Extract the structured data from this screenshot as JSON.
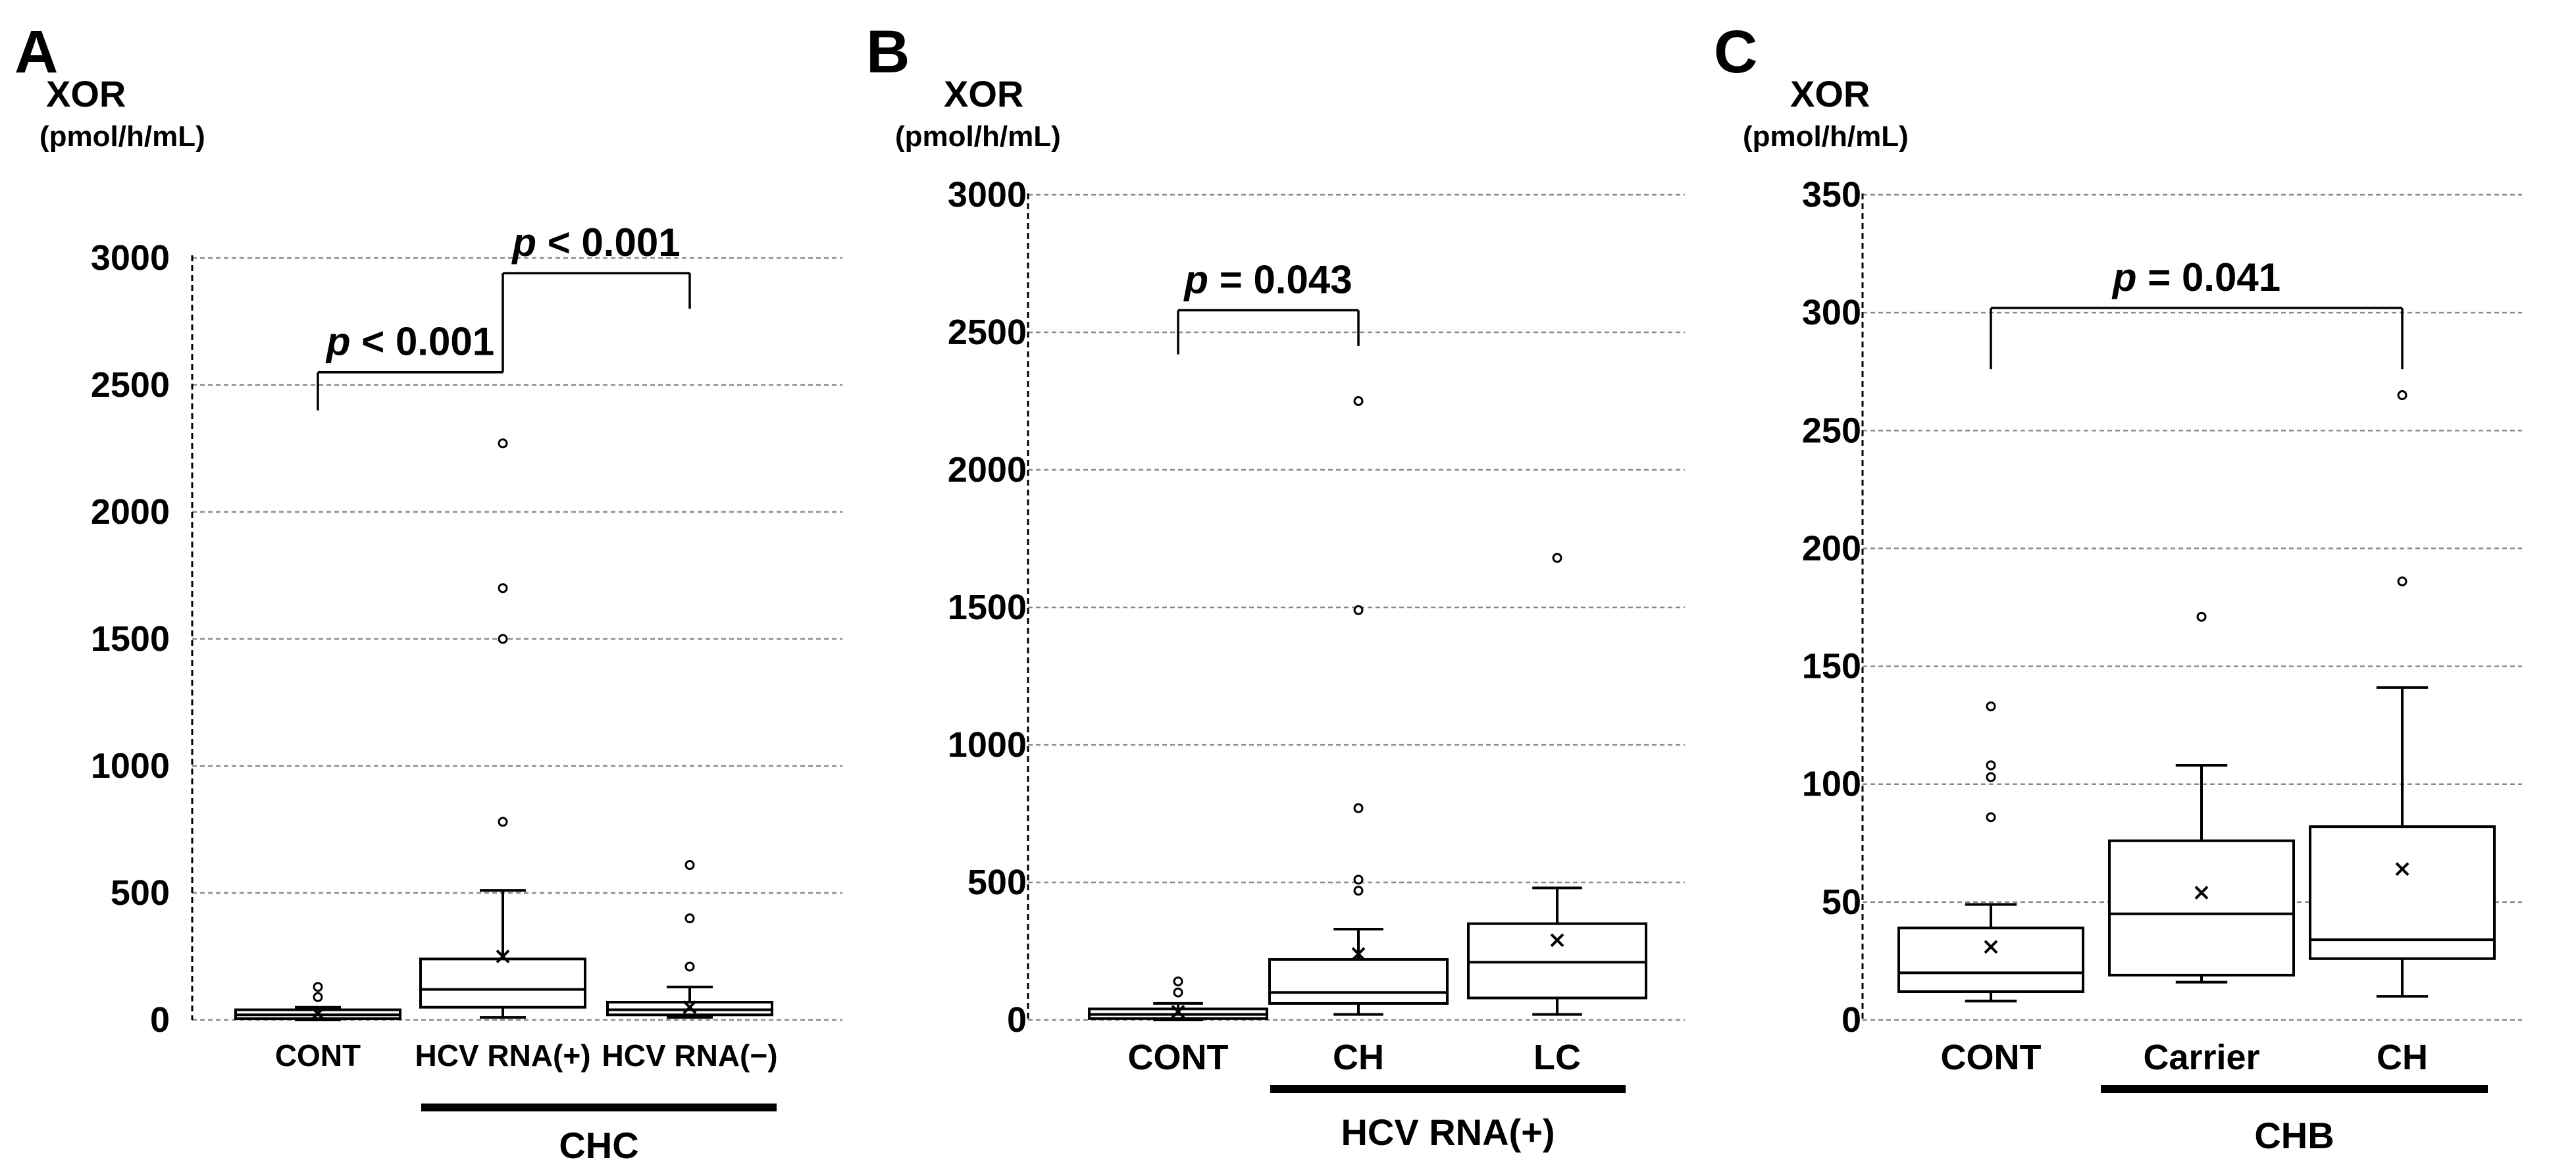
{
  "chart_data": [
    {
      "type": "box",
      "panel": "A",
      "ylabel": "XOR",
      "yunit": "(pmol/h/mL)",
      "ylim": [
        0,
        3000
      ],
      "yticks": [
        0,
        500,
        1000,
        1500,
        2000,
        2500,
        3000
      ],
      "categories": [
        "CONT",
        "HCV RNA(+)",
        "HCV RNA(−)"
      ],
      "group_label": "CHC",
      "group_span": [
        1,
        2
      ],
      "boxes": [
        {
          "name": "CONT",
          "whisker_low": 0,
          "q1": 5,
          "median": 20,
          "q3": 40,
          "whisker_high": 50,
          "mean": 25,
          "outliers": [
            90,
            130
          ]
        },
        {
          "name": "HCV RNA(+)",
          "whisker_low": 10,
          "q1": 50,
          "median": 120,
          "q3": 240,
          "whisker_high": 510,
          "mean": 250,
          "outliers": [
            780,
            1500,
            1700,
            2270
          ]
        },
        {
          "name": "HCV RNA(−)",
          "whisker_low": 10,
          "q1": 20,
          "median": 40,
          "q3": 70,
          "whisker_high": 130,
          "mean": 50,
          "outliers": [
            210,
            400,
            610
          ]
        }
      ],
      "comparisons": [
        {
          "from": 0,
          "to": 1,
          "label_p": "p",
          "label_rest": " < 0.001",
          "y": 2550,
          "left_bottom": 2400,
          "right_bottom": 2550
        },
        {
          "from": 1,
          "to": 2,
          "label_p": "p",
          "label_rest": " < 0.001",
          "y": 2940,
          "left_bottom": 2550,
          "right_bottom": 2800
        }
      ]
    },
    {
      "type": "box",
      "panel": "B",
      "ylabel": "XOR",
      "yunit": "(pmol/h/mL)",
      "ylim": [
        0,
        3000
      ],
      "yticks": [
        0,
        500,
        1000,
        1500,
        2000,
        2500,
        3000
      ],
      "categories": [
        "CONT",
        "CH",
        "LC"
      ],
      "group_label": "HCV  RNA(+)",
      "group_span": [
        1,
        2
      ],
      "boxes": [
        {
          "name": "CONT",
          "whisker_low": 0,
          "q1": 5,
          "median": 20,
          "q3": 40,
          "whisker_high": 60,
          "mean": 30,
          "outliers": [
            100,
            140
          ]
        },
        {
          "name": "CH",
          "whisker_low": 20,
          "q1": 60,
          "median": 100,
          "q3": 220,
          "whisker_high": 330,
          "mean": 240,
          "outliers": [
            470,
            510,
            770,
            1490,
            2250
          ]
        },
        {
          "name": "LC",
          "whisker_low": 20,
          "q1": 80,
          "median": 210,
          "q3": 350,
          "whisker_high": 480,
          "mean": 290,
          "outliers": [
            1680
          ]
        }
      ],
      "comparisons": [
        {
          "from": 0,
          "to": 1,
          "label_p": "p",
          "label_rest": " = 0.043",
          "y": 2580,
          "left_bottom": 2420,
          "right_bottom": 2450
        }
      ]
    },
    {
      "type": "box",
      "panel": "C",
      "ylabel": "XOR",
      "yunit": "(pmol/h/mL)",
      "ylim": [
        0,
        350
      ],
      "yticks": [
        0,
        50,
        100,
        150,
        200,
        250,
        300,
        350
      ],
      "categories": [
        "CONT",
        "Carrier",
        "CH"
      ],
      "group_label": "CHB",
      "group_span": [
        1,
        2
      ],
      "boxes": [
        {
          "name": "CONT",
          "whisker_low": 8,
          "q1": 12,
          "median": 20,
          "q3": 39,
          "whisker_high": 49,
          "mean": 31,
          "outliers": [
            86,
            103,
            108,
            133
          ]
        },
        {
          "name": "Carrier",
          "whisker_low": 16,
          "q1": 19,
          "median": 45,
          "q3": 76,
          "whisker_high": 108,
          "mean": 54,
          "outliers": [
            171
          ]
        },
        {
          "name": "CH",
          "whisker_low": 10,
          "q1": 26,
          "median": 34,
          "q3": 82,
          "whisker_high": 141,
          "mean": 64,
          "outliers": [
            186,
            265
          ]
        }
      ],
      "comparisons": [
        {
          "from": 0,
          "to": 2,
          "label_p": "p",
          "label_rest": " = 0.041",
          "y": 302,
          "left_bottom": 276,
          "right_bottom": 276
        }
      ]
    }
  ]
}
